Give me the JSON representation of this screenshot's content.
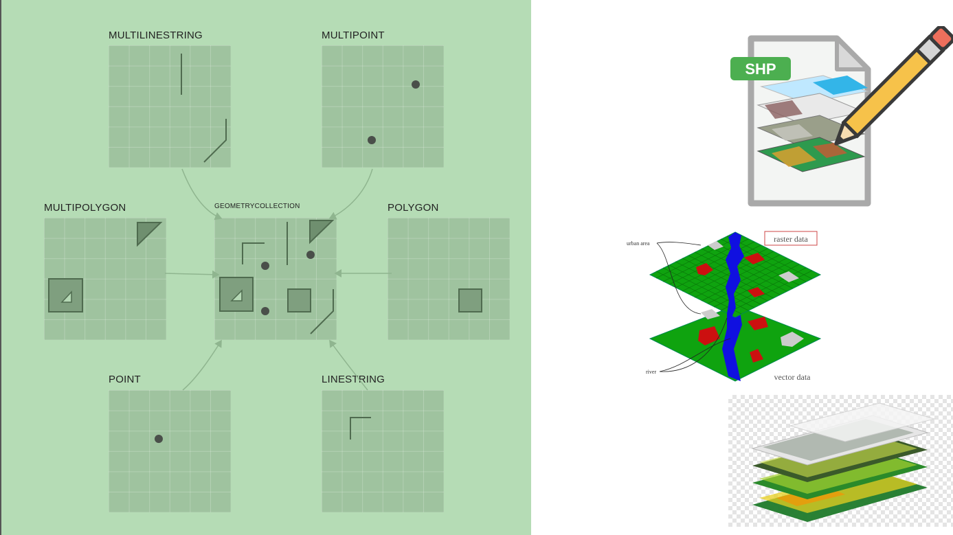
{
  "geometry_diagram": {
    "multilinestring": "MULTILINESTRING",
    "multipoint": "MULTIPOINT",
    "multipolygon": "MULTIPOLYGON",
    "geometrycollection": "GEOMETRYCOLLECTION",
    "polygon": "POLYGON",
    "point": "POINT",
    "linestring": "LINESTRING"
  },
  "shp_icon": {
    "badge": "SHP",
    "badge_color": "#4caf50"
  },
  "raster_vector": {
    "raster_label": "raster data",
    "vector_label": "vector data",
    "urban_label": "urban area",
    "river_label": "river",
    "land_color": "#0fa30f",
    "urban_color": "#cc1010",
    "river_color": "#1010e0"
  }
}
